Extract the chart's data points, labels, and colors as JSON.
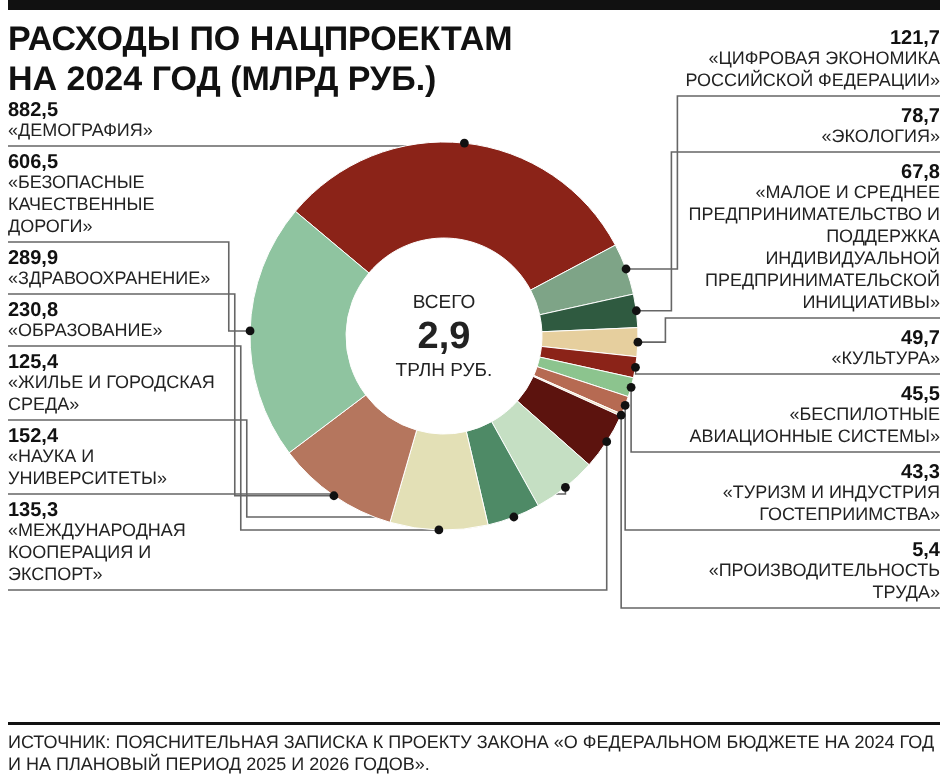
{
  "chart_data": {
    "type": "donut",
    "title": "РАСХОДЫ ПО НАЦПРОЕКТАМ НА 2024 ГОД (МЛРД РУБ.)",
    "categories": [
      "«ДЕМОГРАФИЯ»",
      "«ЦИФРОВАЯ ЭКОНОМИКА РОССИЙСКОЙ ФЕДЕРАЦИИ»",
      "«ЭКОЛОГИЯ»",
      "«МАЛОЕ И СРЕДНЕЕ ПРЕДПРИНИМАТЕЛЬСТВО И ПОДДЕРЖКА ИНДИВИДУАЛЬНОЙ ПРЕДПРИНИМАТЕЛЬСКОЙ ИНИЦИАТИВЫ»",
      "«КУЛЬТУРА»",
      "«БЕСПИЛОТНЫЕ АВИАЦИОННЫЕ СИСТЕМЫ»",
      "«ТУРИЗМ И ИНДУСТРИЯ ГОСТЕПРИИМСТВА»",
      "«ПРОИЗВОДИТЕЛЬНОСТЬ ТРУДА»",
      "«МЕЖДУНАРОДНАЯ КООПЕРАЦИЯ И ЭКСПОРТ»",
      "«НАУКА И УНИВЕРСИТЕТЫ»",
      "«ЖИЛЬЕ И ГОРОДСКАЯ СРЕДА»",
      "«ОБРАЗОВАНИЕ»",
      "«ЗДРАВООХРАНЕНИЕ»",
      "«БЕЗОПАСНЫЕ КАЧЕСТВЕННЫЕ ДОРОГИ»"
    ],
    "values": [
      882.5,
      121.7,
      78.7,
      67.8,
      49.7,
      45.5,
      43.3,
      5.4,
      135.3,
      152.4,
      125.4,
      230.8,
      289.9,
      606.5
    ],
    "value_labels": [
      "882,5",
      "121,7",
      "78,7",
      "67,8",
      "49,7",
      "45,5",
      "43,3",
      "5,4",
      "135,3",
      "152,4",
      "125,4",
      "230,8",
      "289,9",
      "606,5"
    ],
    "colors": [
      "#8b2318",
      "#7ea487",
      "#2f5a40",
      "#e6cf9e",
      "#8b2318",
      "#8cc48e",
      "#b66a52",
      "#f0e0c0",
      "#5c130e",
      "#c5dfc3",
      "#4e8a66",
      "#e3e0b6",
      "#b5765e",
      "#8fc4a0"
    ],
    "annotations": [
      "ВСЕГО",
      "2,9",
      "ТРЛН РУБ.",
      "ИСТОЧНИК: ПОЯСНИТЕЛЬНАЯ ЗАПИСКА К ПРОЕКТУ ЗАКОНА «О ФЕДЕРАЛЬНОМ БЮДЖЕТЕ НА 2024 ГОД И НА ПЛАНОВЫЙ ПЕРИОД 2025 И 2026 ГОДОВ»."
    ]
  }
}
